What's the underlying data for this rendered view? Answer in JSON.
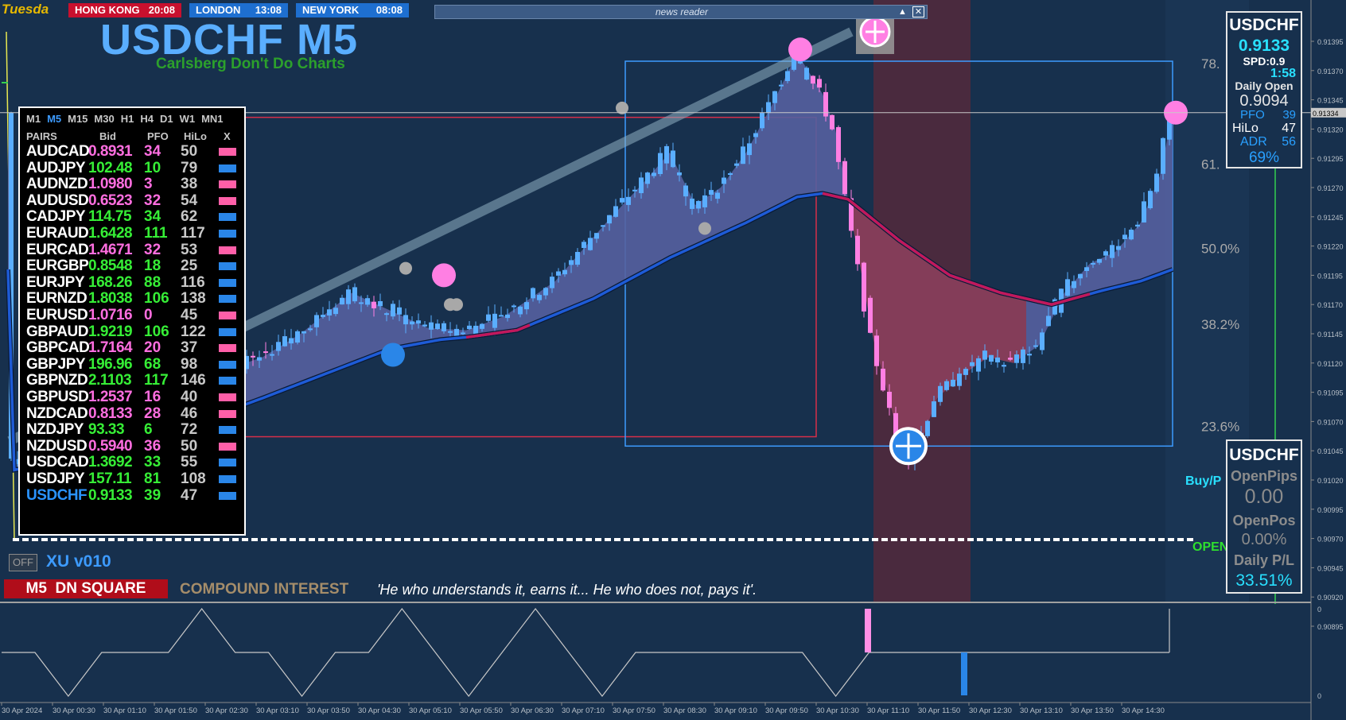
{
  "clocks": [
    {
      "city": "HONG KONG",
      "time": "20:08",
      "bg": "#c8102e"
    },
    {
      "city": "LONDON",
      "time": "13:08",
      "bg": "#1e6fd0"
    },
    {
      "city": "NEW YORK",
      "time": "08:08",
      "bg": "#1e6fd0"
    }
  ],
  "day_label": "Tuesda",
  "news_reader": {
    "title": "news reader"
  },
  "chart_title": "USDCHF M5",
  "chart_subtitle": "Carlsberg Don't Do Charts",
  "xu_label": "XU v010",
  "off_label": "OFF",
  "signal_badge": "M5  DN SQUARE",
  "compound": {
    "label": "COMPOUND INTEREST",
    "quote": "'He who understands it, earns it... He who does not, pays it'."
  },
  "pairs_panel": {
    "timeframes": [
      "M1",
      "M5",
      "M15",
      "M30",
      "H1",
      "H4",
      "D1",
      "W1",
      "MN1"
    ],
    "active_timeframe": "M5",
    "headers": {
      "pairs": "PAIRS",
      "bid": "Bid",
      "pfo": "PFO",
      "hilo": "HiLo",
      "x": "X"
    },
    "rows": [
      {
        "pair": "AUDCAD",
        "bid": "0.8931",
        "pfo": "34",
        "hilo": "50",
        "dir": "down"
      },
      {
        "pair": "AUDJPY",
        "bid": "102.48",
        "pfo": "10",
        "hilo": "79",
        "dir": "up"
      },
      {
        "pair": "AUDNZD",
        "bid": "1.0980",
        "pfo": "3",
        "hilo": "38",
        "dir": "down"
      },
      {
        "pair": "AUDUSD",
        "bid": "0.6523",
        "pfo": "32",
        "hilo": "54",
        "dir": "down"
      },
      {
        "pair": "CADJPY",
        "bid": "114.75",
        "pfo": "34",
        "hilo": "62",
        "dir": "up"
      },
      {
        "pair": "EURAUD",
        "bid": "1.6428",
        "pfo": "111",
        "hilo": "117",
        "dir": "up"
      },
      {
        "pair": "EURCAD",
        "bid": "1.4671",
        "pfo": "32",
        "hilo": "53",
        "dir": "down"
      },
      {
        "pair": "EURGBP",
        "bid": "0.8548",
        "pfo": "18",
        "hilo": "25",
        "dir": "up"
      },
      {
        "pair": "EURJPY",
        "bid": "168.26",
        "pfo": "88",
        "hilo": "116",
        "dir": "up"
      },
      {
        "pair": "EURNZD",
        "bid": "1.8038",
        "pfo": "106",
        "hilo": "138",
        "dir": "up"
      },
      {
        "pair": "EURUSD",
        "bid": "1.0716",
        "pfo": "0",
        "hilo": "45",
        "dir": "down"
      },
      {
        "pair": "GBPAUD",
        "bid": "1.9219",
        "pfo": "106",
        "hilo": "122",
        "dir": "up"
      },
      {
        "pair": "GBPCAD",
        "bid": "1.7164",
        "pfo": "20",
        "hilo": "37",
        "dir": "down"
      },
      {
        "pair": "GBPJPY",
        "bid": "196.96",
        "pfo": "68",
        "hilo": "98",
        "dir": "up"
      },
      {
        "pair": "GBPNZD",
        "bid": "2.1103",
        "pfo": "117",
        "hilo": "146",
        "dir": "up"
      },
      {
        "pair": "GBPUSD",
        "bid": "1.2537",
        "pfo": "16",
        "hilo": "40",
        "dir": "down"
      },
      {
        "pair": "NZDCAD",
        "bid": "0.8133",
        "pfo": "28",
        "hilo": "46",
        "dir": "down"
      },
      {
        "pair": "NZDJPY",
        "bid": "93.33",
        "pfo": "6",
        "hilo": "72",
        "dir": "up"
      },
      {
        "pair": "NZDUSD",
        "bid": "0.5940",
        "pfo": "36",
        "hilo": "50",
        "dir": "down"
      },
      {
        "pair": "USDCAD",
        "bid": "1.3692",
        "pfo": "33",
        "hilo": "55",
        "dir": "up"
      },
      {
        "pair": "USDJPY",
        "bid": "157.11",
        "pfo": "81",
        "hilo": "108",
        "dir": "up"
      },
      {
        "pair": "USDCHF",
        "bid": "0.9133",
        "pfo": "39",
        "hilo": "47",
        "dir": "up",
        "active": true
      }
    ]
  },
  "symbol_box": {
    "symbol": "USDCHF",
    "price": "0.9133",
    "spread": "SPD:0.9",
    "timer": "1:58",
    "daily_open_label": "Daily Open",
    "daily_open": "0.9094",
    "pfo_label": "PFO",
    "pfo": "39",
    "hilo_label": "HiLo",
    "hilo": "47",
    "adr_label": "ADR",
    "adr": "56",
    "adr_pct": "69%"
  },
  "positions_box": {
    "symbol": "USDCHF",
    "open_pips_label": "OpenPips",
    "open_pips": "0.00",
    "open_pos_label": "OpenPos",
    "open_pos": "0.00%",
    "daily_pl_label": "Daily P/L",
    "daily_pl": "33.51%"
  },
  "labels": {
    "buy": "Buy/P",
    "open": "OPEN"
  },
  "current_price_tag": "0.91334",
  "colors": {
    "bg": "#17304d",
    "bull": "#5aaeff",
    "bear": "#ff7fe3",
    "ma": "#1e5bd6",
    "ma_down": "#c2185b",
    "cloud_up": "#5560a0",
    "cloud_down": "#8a3a52",
    "fib": "#aaaaaa"
  },
  "chart_data": [
    {
      "type": "candlestick",
      "symbol": "USDCHF",
      "timeframe": "M5",
      "y_axis": {
        "ticks": [
          "0.91395",
          "0.91370",
          "0.91345",
          "0.91320",
          "0.91295",
          "0.91270",
          "0.91245",
          "0.91220",
          "0.91195",
          "0.91170",
          "0.91145",
          "0.91120",
          "0.91095",
          "0.91070",
          "0.91045",
          "0.91020",
          "0.90995",
          "0.90970",
          "0.90945",
          "0.90920",
          "0.90895"
        ],
        "range": [
          0.90885,
          0.91411
        ]
      },
      "x_axis": {
        "ticks": [
          "30 Apr 2024",
          "30 Apr 00:30",
          "30 Apr 01:10",
          "30 Apr 01:50",
          "30 Apr 02:30",
          "30 Apr 03:10",
          "30 Apr 03:50",
          "30 Apr 04:30",
          "30 Apr 05:10",
          "30 Apr 05:50",
          "30 Apr 06:30",
          "30 Apr 07:10",
          "30 Apr 07:50",
          "30 Apr 08:30",
          "30 Apr 09:10",
          "30 Apr 09:50",
          "30 Apr 10:30",
          "30 Apr 11:10",
          "30 Apr 11:50",
          "30 Apr 12:30",
          "30 Apr 13:10",
          "30 Apr 13:50",
          "30 Apr 14:30"
        ]
      },
      "current_price": 0.91334,
      "fibonacci": [
        {
          "label": "78.",
          "price": 0.91376
        },
        {
          "label": "61.",
          "price": 0.9129
        },
        {
          "label": "50.0%",
          "price": 0.91218
        },
        {
          "label": "38.2%",
          "price": 0.91153
        },
        {
          "label": "23.6%",
          "price": 0.91066
        }
      ],
      "close_path": [
        [
          0.5,
          0.91037
        ],
        [
          8,
          0.91045
        ],
        [
          16,
          0.9106
        ],
        [
          24,
          0.9108
        ],
        [
          32,
          0.9111
        ],
        [
          40,
          0.91125
        ],
        [
          46,
          0.91145
        ],
        [
          54,
          0.9118
        ],
        [
          60,
          0.91165
        ],
        [
          66,
          0.9115
        ],
        [
          72,
          0.91148
        ],
        [
          78,
          0.9116
        ],
        [
          86,
          0.9119
        ],
        [
          94,
          0.9124
        ],
        [
          100,
          0.91275
        ],
        [
          104,
          0.913
        ],
        [
          108,
          0.91255
        ],
        [
          112,
          0.9127
        ],
        [
          116,
          0.913
        ],
        [
          120,
          0.9134
        ],
        [
          124,
          0.91385
        ],
        [
          128,
          0.9135
        ],
        [
          130,
          0.9132
        ],
        [
          132,
          0.9126
        ],
        [
          134,
          0.912
        ],
        [
          136,
          0.9114
        ],
        [
          138,
          0.911
        ],
        [
          140,
          0.91055
        ],
        [
          142,
          0.9104
        ],
        [
          144,
          0.9106
        ],
        [
          146,
          0.9109
        ],
        [
          150,
          0.9111
        ],
        [
          154,
          0.91125
        ],
        [
          158,
          0.9112
        ],
        [
          162,
          0.91135
        ],
        [
          166,
          0.9118
        ],
        [
          170,
          0.91205
        ],
        [
          174,
          0.91215
        ],
        [
          178,
          0.9124
        ],
        [
          181,
          0.9128
        ],
        [
          183,
          0.91334
        ]
      ],
      "moving_average": [
        [
          0.5,
          0.91028
        ],
        [
          20,
          0.9105
        ],
        [
          40,
          0.9109
        ],
        [
          60,
          0.91132
        ],
        [
          68,
          0.9114
        ],
        [
          72,
          0.91142
        ],
        [
          80,
          0.91148
        ],
        [
          92,
          0.91175
        ],
        [
          104,
          0.9121
        ],
        [
          116,
          0.9124
        ],
        [
          124,
          0.91262
        ],
        [
          128,
          0.91265
        ],
        [
          132,
          0.9126
        ],
        [
          140,
          0.91225
        ],
        [
          148,
          0.91195
        ],
        [
          156,
          0.9118
        ],
        [
          164,
          0.9117
        ],
        [
          172,
          0.91182
        ],
        [
          178,
          0.9119
        ],
        [
          183,
          0.912
        ]
      ],
      "signal_markers": [
        {
          "x": 60,
          "price": 0.91127,
          "type": "down-target"
        },
        {
          "x": 141,
          "price": 0.91049,
          "type": "up-target"
        }
      ],
      "reversal_dots": [
        {
          "x": 68,
          "price": 0.91195,
          "color": "#ff7fe3"
        },
        {
          "x": 124,
          "price": 0.91388,
          "color": "#ff7fe3"
        },
        {
          "x": 183,
          "price": 0.91334,
          "color": "#ff7fe3"
        }
      ],
      "boxes": [
        {
          "from_x": 18,
          "to_x": 127,
          "top": 0.9133,
          "bottom": 0.91057,
          "color": "#d62f4a"
        },
        {
          "from_x": 97,
          "to_x": 183,
          "top": 0.91378,
          "bottom": 0.91049,
          "color": "#3d9bff"
        }
      ]
    },
    {
      "type": "line",
      "name": "oscillator",
      "y_axis": {
        "ticks": [
          "0",
          "0"
        ]
      },
      "series": [
        {
          "values": [
            0,
            0,
            -1,
            0,
            0,
            0,
            1,
            0,
            0,
            -1,
            0,
            0,
            1,
            0,
            -1,
            0,
            1,
            0,
            -1,
            0,
            0,
            0,
            0,
            0,
            0,
            -1,
            0,
            0,
            0,
            0,
            0,
            0,
            0,
            0,
            0,
            0
          ]
        }
      ]
    }
  ]
}
